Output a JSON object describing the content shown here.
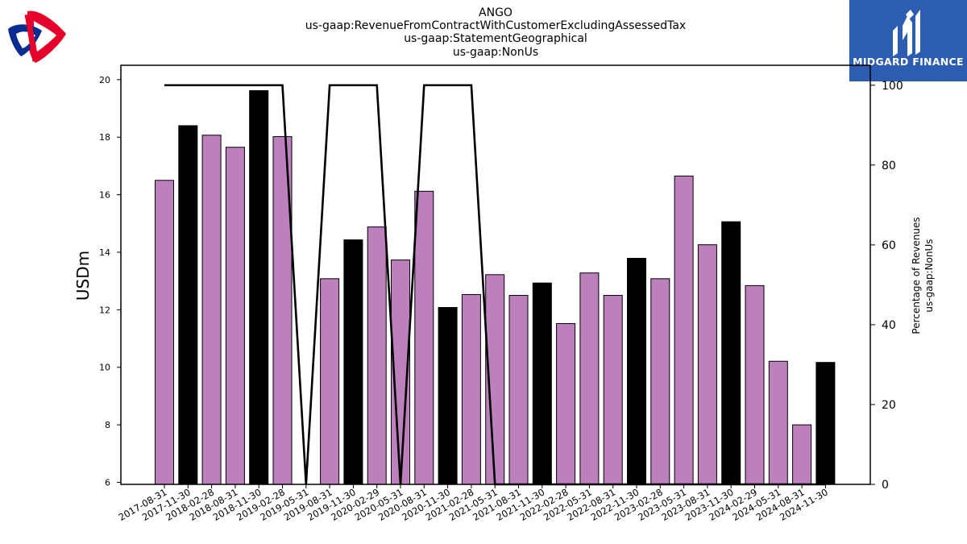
{
  "header": {
    "title_lines": [
      "ANGO",
      "us-gaap:RevenueFromContractWithCustomerExcludingAssessedTax",
      "us-gaap:StatementGeographical",
      "us-gaap:NonUs"
    ]
  },
  "brand": {
    "name": "MIDGARD FINANCE",
    "box_color": "#2d5db0"
  },
  "logos": {
    "left_logo_icon": "interlocking-ribbon-logo-icon",
    "brand_logo_icon": "midgard-m-logo-icon"
  },
  "chart_data": {
    "type": "bar",
    "categories": [
      "2017-08-31",
      "2017-11-30",
      "2018-02-28",
      "2018-08-31",
      "2018-11-30",
      "2019-02-28",
      "2019-05-31",
      "2019-08-31",
      "2019-11-30",
      "2020-02-29",
      "2020-05-31",
      "2020-08-31",
      "2020-11-30",
      "2021-02-28",
      "2021-05-31",
      "2021-08-31",
      "2021-11-30",
      "2022-02-28",
      "2022-05-31",
      "2022-08-31",
      "2022-11-30",
      "2023-02-28",
      "2023-05-31",
      "2023-08-31",
      "2023-11-30",
      "2024-02-29",
      "2024-05-31",
      "2024-08-31",
      "2024-11-30"
    ],
    "series": [
      {
        "values": [
          16.5,
          18.4,
          18.07,
          17.65,
          19.62,
          18.02,
          null,
          13.08,
          14.43,
          14.88,
          13.73,
          16.12,
          12.08,
          12.53,
          13.22,
          12.5,
          12.93,
          11.52,
          13.28,
          12.5,
          13.79,
          13.08,
          16.65,
          14.26,
          15.06,
          12.84,
          10.21,
          8.0,
          10.17
        ],
        "bar_colors": [
          "#bc80bd",
          "#000000",
          "#bc80bd",
          "#bc80bd",
          "#000000",
          "#bc80bd",
          null,
          "#bc80bd",
          "#000000",
          "#bc80bd",
          "#bc80bd",
          "#bc80bd",
          "#000000",
          "#bc80bd",
          "#bc80bd",
          "#bc80bd",
          "#000000",
          "#bc80bd",
          "#bc80bd",
          "#bc80bd",
          "#000000",
          "#bc80bd",
          "#bc80bd",
          "#bc80bd",
          "#000000",
          "#bc80bd",
          "#bc80bd",
          "#bc80bd",
          "#000000"
        ],
        "axis": "left"
      },
      {
        "type": "line",
        "values": [
          100,
          100,
          100,
          100,
          100,
          100,
          0,
          100,
          100,
          100,
          0,
          100,
          100,
          100,
          0,
          0,
          0,
          0,
          0,
          0,
          0,
          0,
          0,
          0,
          0,
          0,
          0,
          0,
          0
        ],
        "color": "#000000",
        "axis": "right"
      }
    ],
    "ylabel": "USDm",
    "ylim": [
      5.93,
      20.5
    ],
    "yticks": [
      6,
      8,
      10,
      12,
      14,
      16,
      18,
      20
    ],
    "y2label_lines": [
      "Percentage of Revenues",
      "us-gaap:NonUs"
    ],
    "y2lim": [
      0,
      105
    ],
    "y2ticks": [
      0,
      20,
      40,
      60,
      80,
      100
    ],
    "grid": false,
    "bar_edge_color": "#000000"
  }
}
